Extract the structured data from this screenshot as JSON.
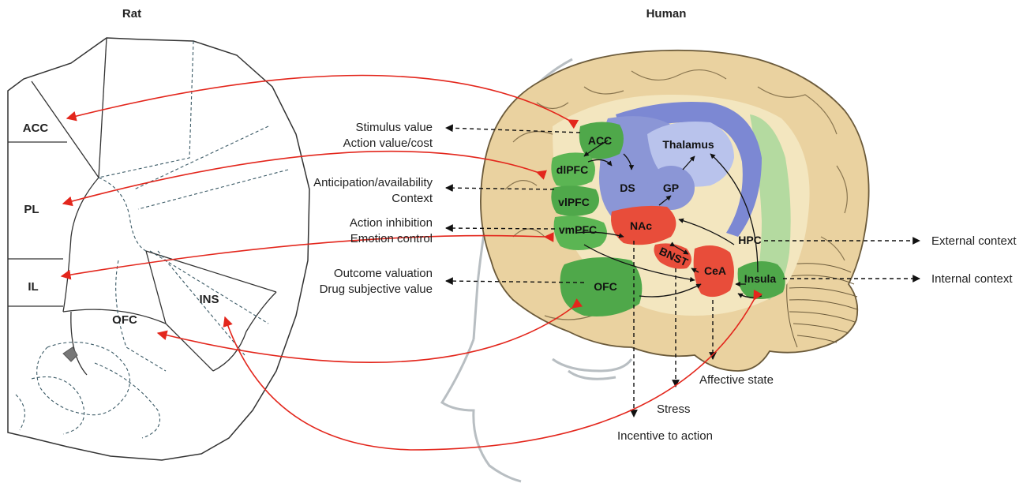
{
  "titles": {
    "rat": "Rat",
    "human": "Human"
  },
  "rat_regions": {
    "acc": "ACC",
    "pl": "PL",
    "il": "IL",
    "ofc": "OFC",
    "ins": "INS"
  },
  "human_regions": {
    "acc": "ACC",
    "dlpfc": "dlPFC",
    "vlpfc": "vlPFC",
    "vmpfc": "vmPFC",
    "ofc": "OFC",
    "ds": "DS",
    "gp": "GP",
    "thalamus": "Thalamus",
    "nac": "NAc",
    "bnst": "BNST",
    "cea": "CeA",
    "hpc": "HPC",
    "insula": "Insula"
  },
  "functions_left": [
    {
      "line1": "Stimulus value",
      "line2": "Action value/cost"
    },
    {
      "line1": "Anticipation/availability",
      "line2": "Context"
    },
    {
      "line1": "Action inhibition",
      "line2": "Emotion control"
    },
    {
      "line1": "Outcome valuation",
      "line2": "Drug subjective value"
    }
  ],
  "functions_right": {
    "external": "External context",
    "internal": "Internal context"
  },
  "functions_bottom": {
    "affective": "Affective state",
    "stress": "Stress",
    "incentive": "Incentive to action"
  },
  "colors": {
    "brain": "#ead2a0",
    "brain_stroke": "#6b5a3a",
    "prefrontal": "#4fa84a",
    "striatum": "#8b96d6",
    "thalamus": "#b9c3ec",
    "amygdala": "#e84d3a",
    "hpc": "#a8d79a",
    "arrow_red": "#e3261c",
    "head": "#b8bec2"
  }
}
